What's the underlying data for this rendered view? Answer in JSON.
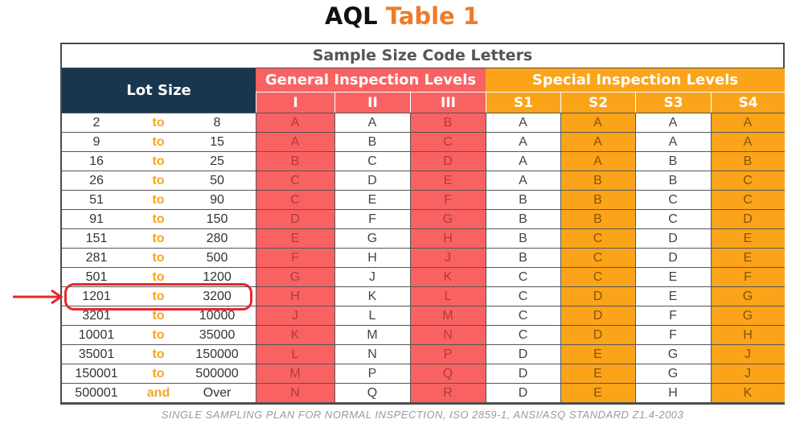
{
  "title": {
    "part1": "AQL",
    "part2": "Table 1"
  },
  "table": {
    "caption": "Sample Size Code Letters",
    "lot_header": "Lot Size",
    "general_header": "General Inspection Levels",
    "special_header": "Special Inspection Levels",
    "general_levels": [
      "I",
      "II",
      "III"
    ],
    "special_levels": [
      "S1",
      "S2",
      "S3",
      "S4"
    ],
    "rows": [
      {
        "from": "2",
        "sep": "to",
        "to": "8",
        "codes": [
          "A",
          "A",
          "B",
          "A",
          "A",
          "A",
          "A"
        ]
      },
      {
        "from": "9",
        "sep": "to",
        "to": "15",
        "codes": [
          "A",
          "B",
          "C",
          "A",
          "A",
          "A",
          "A"
        ]
      },
      {
        "from": "16",
        "sep": "to",
        "to": "25",
        "codes": [
          "B",
          "C",
          "D",
          "A",
          "A",
          "B",
          "B"
        ]
      },
      {
        "from": "26",
        "sep": "to",
        "to": "50",
        "codes": [
          "C",
          "D",
          "E",
          "A",
          "B",
          "B",
          "C"
        ]
      },
      {
        "from": "51",
        "sep": "to",
        "to": "90",
        "codes": [
          "C",
          "E",
          "F",
          "B",
          "B",
          "C",
          "C"
        ]
      },
      {
        "from": "91",
        "sep": "to",
        "to": "150",
        "codes": [
          "D",
          "F",
          "G",
          "B",
          "B",
          "C",
          "D"
        ]
      },
      {
        "from": "151",
        "sep": "to",
        "to": "280",
        "codes": [
          "E",
          "G",
          "H",
          "B",
          "C",
          "D",
          "E"
        ]
      },
      {
        "from": "281",
        "sep": "to",
        "to": "500",
        "codes": [
          "F",
          "H",
          "J",
          "B",
          "C",
          "D",
          "E"
        ]
      },
      {
        "from": "501",
        "sep": "to",
        "to": "1200",
        "codes": [
          "G",
          "J",
          "K",
          "C",
          "C",
          "E",
          "F"
        ]
      },
      {
        "from": "1201",
        "sep": "to",
        "to": "3200",
        "codes": [
          "H",
          "K",
          "L",
          "C",
          "D",
          "E",
          "G"
        ]
      },
      {
        "from": "3201",
        "sep": "to",
        "to": "10000",
        "codes": [
          "J",
          "L",
          "M",
          "C",
          "D",
          "F",
          "G"
        ]
      },
      {
        "from": "10001",
        "sep": "to",
        "to": "35000",
        "codes": [
          "K",
          "M",
          "N",
          "C",
          "D",
          "F",
          "H"
        ]
      },
      {
        "from": "35001",
        "sep": "to",
        "to": "150000",
        "codes": [
          "L",
          "N",
          "P",
          "D",
          "E",
          "G",
          "J"
        ]
      },
      {
        "from": "150001",
        "sep": "to",
        "to": "500000",
        "codes": [
          "M",
          "P",
          "Q",
          "D",
          "E",
          "G",
          "J"
        ]
      },
      {
        "from": "500001",
        "sep": "and",
        "to": "Over",
        "codes": [
          "N",
          "Q",
          "R",
          "D",
          "E",
          "H",
          "K"
        ]
      }
    ],
    "highlighted_row": 9
  },
  "footnote": "SINGLE SAMPLING PLAN FOR NORMAL INSPECTION, ISO 2859-1, ANSI/ASQ STANDARD Z1.4-2003",
  "colors": {
    "lot_header": "#18374f",
    "general": "#f96262",
    "special": "#fba41a",
    "title_accent": "#f07a28",
    "highlight": "#e8262c"
  }
}
